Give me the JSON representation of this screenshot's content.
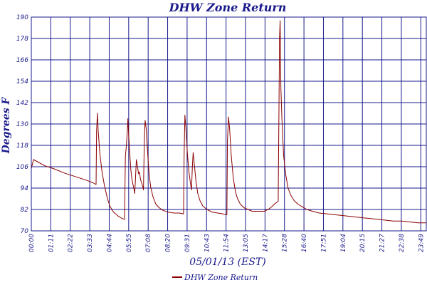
{
  "chart_data": {
    "type": "line",
    "title": "DHW Zone Return",
    "xlabel": "05/01/13 (EST)",
    "ylabel": "Degrees F",
    "ylim": [
      70,
      190
    ],
    "xlim": [
      0,
      1440
    ],
    "yticks": [
      70,
      82,
      94,
      106,
      118,
      130,
      142,
      154,
      166,
      178,
      190
    ],
    "xticks": [
      {
        "t": 0,
        "label": "00:00"
      },
      {
        "t": 71,
        "label": "01:11"
      },
      {
        "t": 142,
        "label": "02:22"
      },
      {
        "t": 213,
        "label": "03:33"
      },
      {
        "t": 284,
        "label": "04:44"
      },
      {
        "t": 355,
        "label": "05:55"
      },
      {
        "t": 426,
        "label": "07:08"
      },
      {
        "t": 497,
        "label": "08:20"
      },
      {
        "t": 568,
        "label": "09:31"
      },
      {
        "t": 639,
        "label": "10:43"
      },
      {
        "t": 710,
        "label": "11:54"
      },
      {
        "t": 781,
        "label": "13:05"
      },
      {
        "t": 852,
        "label": "14:17"
      },
      {
        "t": 923,
        "label": "15:28"
      },
      {
        "t": 994,
        "label": "16:40"
      },
      {
        "t": 1065,
        "label": "17:51"
      },
      {
        "t": 1136,
        "label": "19:04"
      },
      {
        "t": 1207,
        "label": "20:15"
      },
      {
        "t": 1278,
        "label": "21:27"
      },
      {
        "t": 1349,
        "label": "22:38"
      },
      {
        "t": 1420,
        "label": "23:49"
      }
    ],
    "grid": true,
    "legend_position": "bottom-center",
    "series": [
      {
        "name": "DHW Zone Return",
        "color": "#8b0000",
        "points": [
          [
            0,
            105
          ],
          [
            8,
            110
          ],
          [
            20,
            109
          ],
          [
            50,
            106.5
          ],
          [
            80,
            105
          ],
          [
            120,
            102.5
          ],
          [
            160,
            100.5
          ],
          [
            200,
            98.5
          ],
          [
            225,
            97
          ],
          [
            236,
            96
          ],
          [
            238,
            126
          ],
          [
            241,
            136
          ],
          [
            244,
            126
          ],
          [
            250,
            113
          ],
          [
            258,
            103
          ],
          [
            266,
            96
          ],
          [
            276,
            89
          ],
          [
            286,
            84
          ],
          [
            300,
            80.5
          ],
          [
            315,
            78.5
          ],
          [
            330,
            77
          ],
          [
            340,
            76.5
          ],
          [
            343,
            112
          ],
          [
            346,
            117
          ],
          [
            350,
            126
          ],
          [
            352,
            133
          ],
          [
            355,
            124
          ],
          [
            359,
            113
          ],
          [
            363,
            104
          ],
          [
            367,
            99
          ],
          [
            372,
            95
          ],
          [
            375,
            93
          ],
          [
            377,
            91
          ],
          [
            379,
            97
          ],
          [
            383,
            110
          ],
          [
            387,
            106
          ],
          [
            391,
            102
          ],
          [
            394,
            103
          ],
          [
            398,
            99
          ],
          [
            402,
            97
          ],
          [
            406,
            95
          ],
          [
            409,
            93
          ],
          [
            412,
            121
          ],
          [
            415,
            132
          ],
          [
            419,
            127
          ],
          [
            424,
            114
          ],
          [
            430,
            101
          ],
          [
            436,
            94
          ],
          [
            444,
            89
          ],
          [
            454,
            85
          ],
          [
            466,
            83
          ],
          [
            480,
            81.5
          ],
          [
            500,
            80.5
          ],
          [
            520,
            80
          ],
          [
            540,
            80
          ],
          [
            555,
            79.5
          ],
          [
            557,
            112
          ],
          [
            560,
            135
          ],
          [
            563,
            129
          ],
          [
            568,
            116
          ],
          [
            574,
            104
          ],
          [
            580,
            97
          ],
          [
            584,
            93
          ],
          [
            587,
            105
          ],
          [
            590,
            114
          ],
          [
            594,
            108
          ],
          [
            600,
            98
          ],
          [
            607,
            91
          ],
          [
            615,
            87
          ],
          [
            625,
            84
          ],
          [
            640,
            82
          ],
          [
            660,
            80.5
          ],
          [
            680,
            80
          ],
          [
            700,
            79.5
          ],
          [
            713,
            79
          ],
          [
            715,
            121
          ],
          [
            719,
            134
          ],
          [
            723,
            127
          ],
          [
            729,
            112
          ],
          [
            736,
            100
          ],
          [
            744,
            92
          ],
          [
            752,
            88
          ],
          [
            762,
            85
          ],
          [
            775,
            83
          ],
          [
            790,
            82
          ],
          [
            805,
            81
          ],
          [
            818,
            81
          ],
          [
            850,
            81
          ],
          [
            868,
            82.5
          ],
          [
            880,
            84
          ],
          [
            886,
            85
          ],
          [
            895,
            86
          ],
          [
            900,
            86.5
          ],
          [
            905,
            178
          ],
          [
            907,
            188
          ],
          [
            910,
            150
          ],
          [
            914,
            131
          ],
          [
            920,
            112
          ],
          [
            928,
            101
          ],
          [
            936,
            94
          ],
          [
            946,
            90
          ],
          [
            958,
            87
          ],
          [
            972,
            85
          ],
          [
            988,
            83.5
          ],
          [
            1005,
            82
          ],
          [
            1025,
            81
          ],
          [
            1050,
            80
          ],
          [
            1080,
            79.5
          ],
          [
            1110,
            79
          ],
          [
            1140,
            78.5
          ],
          [
            1170,
            78
          ],
          [
            1200,
            77.5
          ],
          [
            1230,
            77
          ],
          [
            1260,
            76.5
          ],
          [
            1290,
            76
          ],
          [
            1320,
            75.5
          ],
          [
            1350,
            75.5
          ],
          [
            1380,
            75
          ],
          [
            1410,
            74.5
          ],
          [
            1440,
            74.5
          ]
        ]
      }
    ]
  }
}
